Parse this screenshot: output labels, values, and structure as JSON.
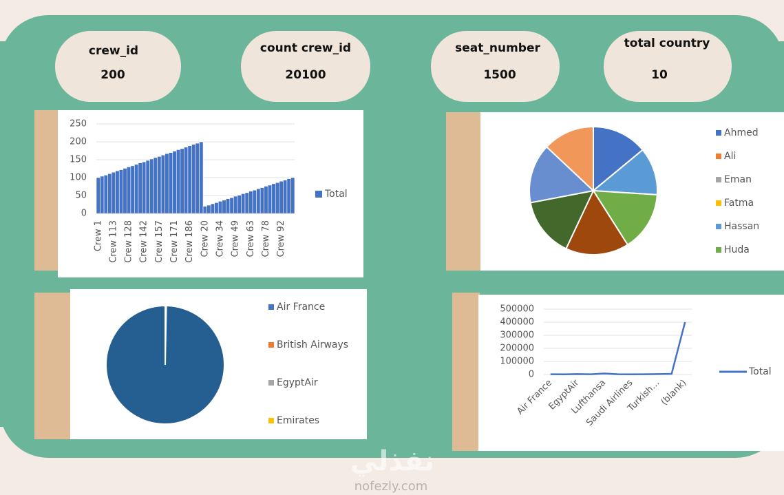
{
  "kpis": [
    {
      "label": "crew_id",
      "value": 200
    },
    {
      "label": "count crew_id",
      "value": 20100
    },
    {
      "label": "seat_number",
      "value": 1500
    },
    {
      "label": "total country",
      "value": 10
    }
  ],
  "chart_data": [
    {
      "type": "bar",
      "categories": [
        "Crew 1",
        null,
        null,
        null,
        "Crew 113",
        null,
        null,
        null,
        "Crew 128",
        null,
        null,
        null,
        "Crew 142",
        null,
        null,
        null,
        "Crew 157",
        null,
        null,
        null,
        "Crew 171",
        null,
        null,
        null,
        "Crew 186",
        null,
        null,
        null,
        "Crew 20",
        null,
        null,
        null,
        "Crew 34",
        null,
        null,
        null,
        "Crew 49",
        null,
        null,
        null,
        "Crew 63",
        null,
        null,
        null,
        "Crew 78",
        null,
        null,
        null,
        "Crew 92",
        null,
        null,
        null
      ],
      "series": [
        {
          "name": "Total",
          "color": "#4472c4",
          "values": [
            100,
            104,
            107,
            111,
            115,
            119,
            122,
            126,
            130,
            133,
            137,
            141,
            144,
            148,
            152,
            156,
            159,
            163,
            167,
            170,
            174,
            178,
            181,
            185,
            189,
            193,
            196,
            200,
            20,
            23,
            27,
            30,
            34,
            37,
            41,
            44,
            48,
            51,
            55,
            58,
            62,
            65,
            69,
            72,
            76,
            79,
            83,
            86,
            90,
            93,
            97,
            100
          ]
        }
      ],
      "ylim": [
        0,
        250
      ],
      "yticks": [
        0,
        50,
        100,
        150,
        200,
        250
      ],
      "grid": true,
      "legend": "right"
    },
    {
      "type": "pie",
      "categories": [
        "Ahmed",
        "Ali",
        "Eman",
        "Fatma",
        "Hassan",
        "Huda",
        null,
        null,
        null,
        null
      ],
      "values": [
        14,
        0,
        0,
        0,
        12,
        15,
        16,
        15,
        15,
        13
      ],
      "colors": [
        "#4472c4",
        "#ed7d31",
        "#a5a5a5",
        "#ffc000",
        "#5b9bd5",
        "#70ad47",
        "#9e480e",
        "#43682b",
        "#698ed0",
        "#f1975a"
      ],
      "legend": "right"
    },
    {
      "type": "pie",
      "categories": [
        "Air France",
        "British Airways",
        "EgyptAir",
        "Emirates",
        null
      ],
      "values": [
        0.3,
        0,
        0,
        0,
        99.7
      ],
      "colors": [
        "#4472c4",
        "#ed7d31",
        "#a5a5a5",
        "#ffc000",
        "#255e91"
      ],
      "legend": "right"
    },
    {
      "type": "line",
      "categories": [
        "Air France",
        null,
        "EgyptAir",
        null,
        "Lufthansa",
        null,
        "Saudi Airlines",
        null,
        "Turkish…",
        null,
        "(blank)"
      ],
      "series": [
        {
          "name": "Total",
          "color": "#4472c4",
          "values": [
            2000,
            1500,
            3000,
            2000,
            8000,
            2000,
            1500,
            2000,
            3000,
            5000,
            400000
          ]
        }
      ],
      "ylim": [
        0,
        500000
      ],
      "yticks": [
        0,
        100000,
        200000,
        300000,
        400000,
        500000
      ],
      "grid": true,
      "legend": "right"
    }
  ],
  "watermark": {
    "arabic": "نفذلي",
    "latin": "nofezly.com"
  }
}
